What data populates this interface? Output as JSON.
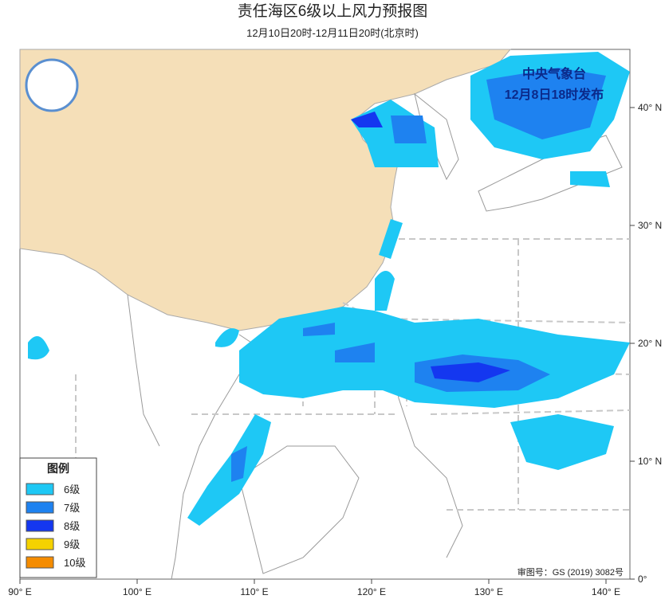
{
  "header": {
    "title": "责任海区6级以上风力预报图",
    "subtitle": "12月10日20时-12月11日20时(北京时)"
  },
  "issuer": {
    "agency": "中央气象台",
    "issued": "12月8日18时发布"
  },
  "legend": {
    "title": "图例",
    "items": [
      {
        "label": "6级",
        "color": "#1ec8f5"
      },
      {
        "label": "7级",
        "color": "#1e82f0"
      },
      {
        "label": "8级",
        "color": "#1437f0"
      },
      {
        "label": "9级",
        "color": "#f5d200"
      },
      {
        "label": "10级",
        "color": "#f58c00"
      }
    ]
  },
  "lon_ticks": [
    {
      "value": 90,
      "label": "90° E"
    },
    {
      "value": 100,
      "label": "100° E"
    },
    {
      "value": 110,
      "label": "110° E"
    },
    {
      "value": 120,
      "label": "120° E"
    },
    {
      "value": 130,
      "label": "130° E"
    },
    {
      "value": 140,
      "label": "140° E"
    }
  ],
  "lat_ticks": [
    {
      "value": 0,
      "label": "0°"
    },
    {
      "value": 10,
      "label": "10° N"
    },
    {
      "value": 20,
      "label": "20° N"
    },
    {
      "value": 30,
      "label": "30° N"
    },
    {
      "value": 40,
      "label": "40° N"
    }
  ],
  "approval": "审图号：GS (2019) 3082号"
}
